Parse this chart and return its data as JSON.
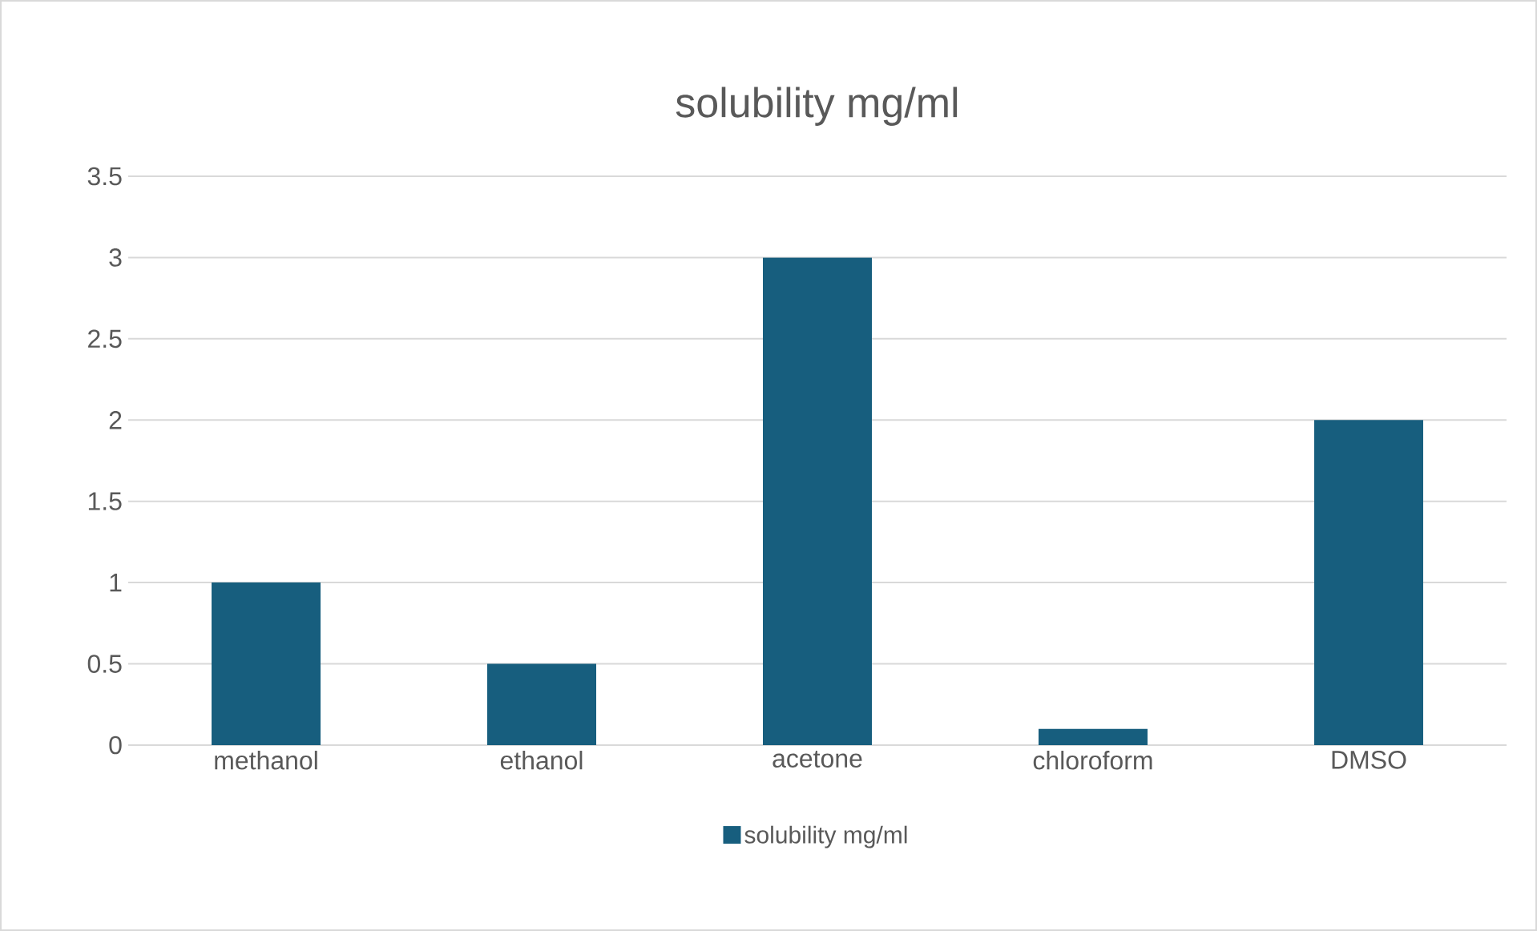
{
  "chart_data": {
    "type": "bar",
    "title": "solubility mg/ml",
    "categories": [
      "methanol",
      "ethanol",
      "acetone",
      "chloroform",
      "DMSO"
    ],
    "series": [
      {
        "name": "solubility mg/ml",
        "color": "#175e7e",
        "values": [
          1,
          0.5,
          3,
          0.1,
          2
        ]
      }
    ],
    "ylim": [
      0,
      3.5
    ],
    "yticks": [
      0,
      0.5,
      1,
      1.5,
      2,
      2.5,
      3,
      3.5
    ],
    "grid": "y",
    "legend": "bottom"
  }
}
